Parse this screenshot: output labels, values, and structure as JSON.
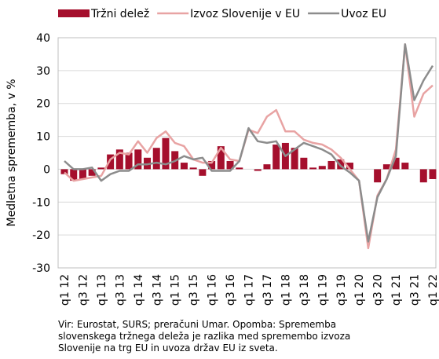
{
  "chart_data": {
    "type": "bar_line",
    "ylabel": "Medletna sprememba, v %",
    "categories": [
      "q1 12",
      null,
      "q3 12",
      null,
      "q1 13",
      null,
      "q3 13",
      null,
      "q1 14",
      null,
      "q3 14",
      null,
      "q1 15",
      null,
      "q3 15",
      null,
      "q1 16",
      null,
      "q3 16",
      null,
      "q1 17",
      null,
      "q3 17",
      null,
      "q1 18",
      null,
      "q3 18",
      null,
      "q1 19",
      null,
      "q3 19",
      null,
      "q1 20",
      null,
      "q3 20",
      null,
      "q1 21",
      null,
      "q3 21",
      null,
      "q1 22"
    ],
    "series": [
      {
        "name": "Tržni delež",
        "kind": "bar",
        "color": "#a50f2d",
        "values": [
          -1.5,
          -3.5,
          -3,
          -2,
          0.5,
          4.5,
          6,
          5,
          6,
          3.5,
          6.5,
          9.5,
          5.5,
          2,
          0.5,
          -2,
          2.5,
          7,
          2.5,
          0.5,
          0,
          -0.5,
          1.5,
          7.5,
          8,
          6.5,
          3.5,
          0.5,
          1,
          2.5,
          3,
          2,
          0,
          0,
          -4,
          1.5,
          3.5,
          2,
          0,
          -4,
          -3
        ]
      },
      {
        "name": "Izvoz Slovenije v EU",
        "kind": "line",
        "color": "#e8a3a3",
        "values": [
          -1,
          -3.5,
          -3,
          -2.5,
          -2,
          3,
          5,
          4.5,
          8.5,
          5,
          9.5,
          11.5,
          8,
          7,
          3,
          2,
          2,
          6.5,
          3,
          2.5,
          12,
          11,
          16,
          18,
          11.5,
          11.5,
          9,
          8,
          7.5,
          6,
          3.5,
          0,
          -3.5,
          -24,
          -8,
          -3,
          6,
          38,
          16,
          23,
          25.5
        ]
      },
      {
        "name": "Uvoz EU",
        "kind": "line",
        "color": "#8c8c8c",
        "values": [
          2.5,
          0,
          0,
          0.5,
          -3.5,
          -1.5,
          -0.5,
          -0.5,
          1.5,
          1.5,
          2,
          1.5,
          2.5,
          4,
          3,
          3.5,
          -0.5,
          -0.5,
          -0.5,
          2.5,
          12.5,
          8.5,
          8,
          8.5,
          4,
          6,
          8,
          7,
          6,
          4.5,
          1,
          -1,
          -3.5,
          -22,
          -8.5,
          -3,
          4,
          38,
          21,
          27,
          31.5
        ]
      }
    ],
    "ylim": [
      -30,
      40
    ],
    "yticks": [
      -30,
      -20,
      -10,
      0,
      10,
      20,
      30,
      40
    ],
    "grid": true,
    "note": [
      "Vir: Eurostat, SURS; preračuni Umar. Opomba: Sprememba",
      "slovenskega tržnega deleža je razlika med spremembo izvoza",
      "Slovenije na trg EU in uvoza držav EU iz sveta."
    ]
  }
}
